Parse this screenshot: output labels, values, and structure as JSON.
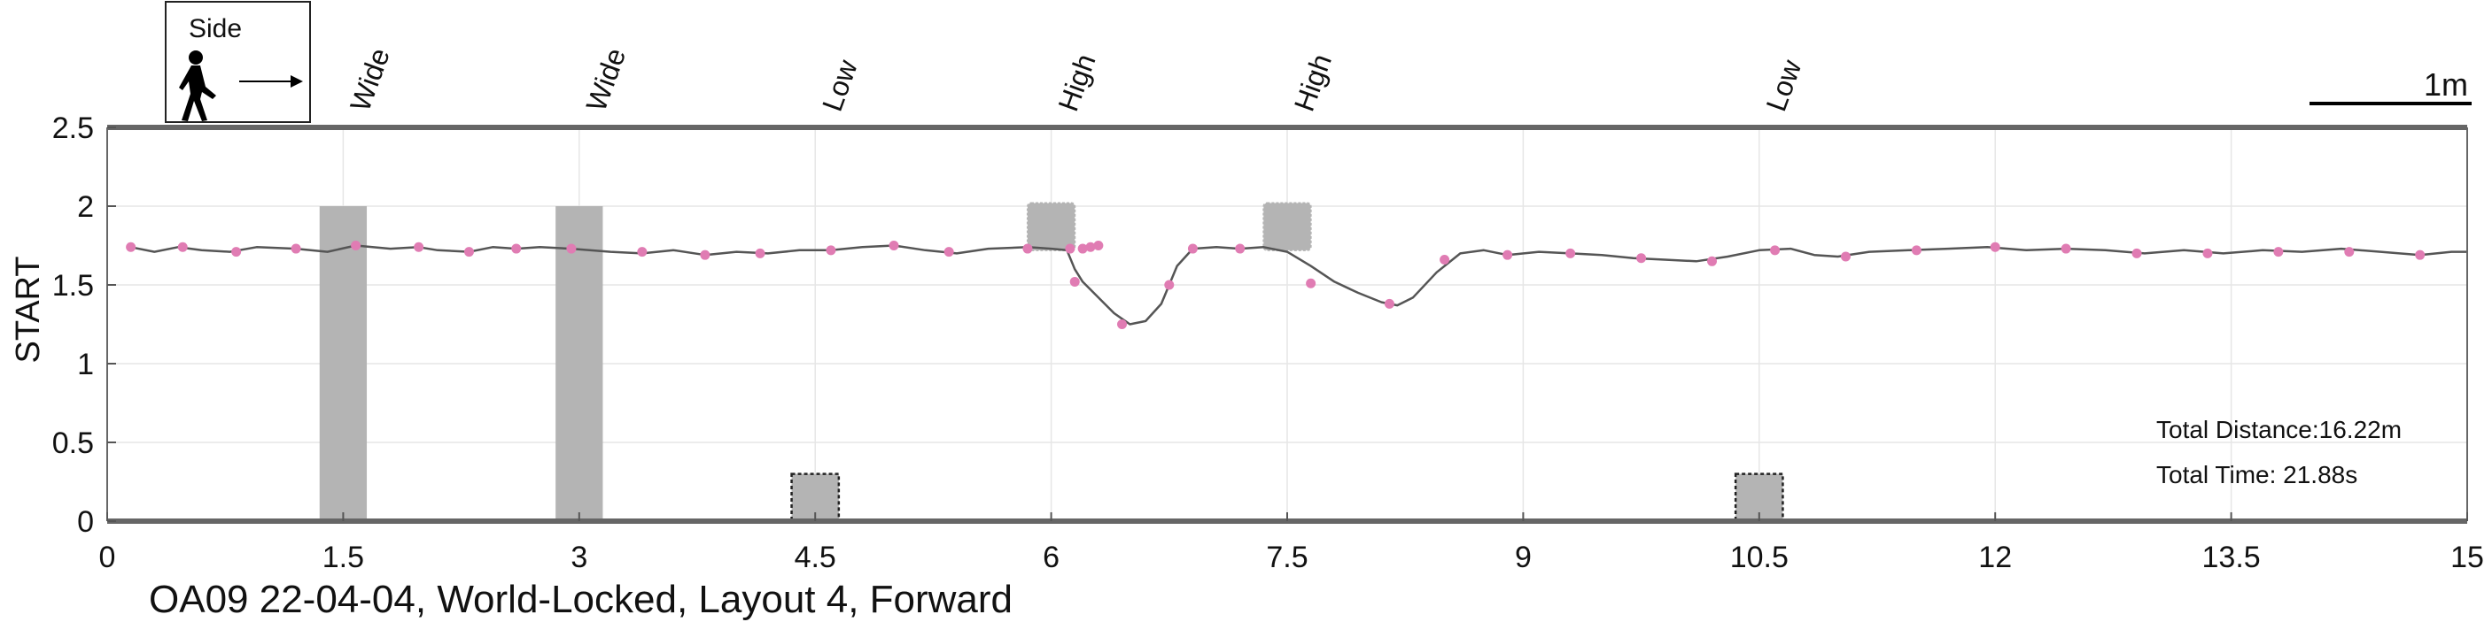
{
  "chart_data": {
    "type": "line",
    "title": "OA09 22-04-04, World-Locked, Layout 4, Forward",
    "xlabel": "",
    "ylabel": "START",
    "xlim": [
      0,
      15
    ],
    "ylim": [
      0,
      2.5
    ],
    "x_ticks": [
      "0",
      "1.5",
      "3",
      "4.5",
      "6",
      "7.5",
      "9",
      "10.5",
      "12",
      "13.5",
      "15"
    ],
    "y_ticks": [
      "0",
      "0.5",
      "1",
      "1.5",
      "2",
      "2.5"
    ],
    "x_tick_values": [
      0,
      1.5,
      3,
      4.5,
      6,
      7.5,
      9,
      10.5,
      12,
      13.5,
      15
    ],
    "y_tick_values": [
      0,
      0.5,
      1,
      1.5,
      2,
      2.5
    ],
    "grid": true,
    "legend": {
      "label": "Side",
      "position": "top-left",
      "icon": "walking-person-icon"
    },
    "scale_bar": {
      "label": "1m",
      "length": 1
    },
    "annotations": [
      "Total Distance:16.22m",
      "Total Time: 21.88s"
    ],
    "obstacles": [
      {
        "label": "Wide",
        "kind": "wide",
        "x_range": [
          1.35,
          1.65
        ],
        "y_range": [
          0,
          2.0
        ]
      },
      {
        "label": "Wide",
        "kind": "wide",
        "x_range": [
          2.85,
          3.15
        ],
        "y_range": [
          0,
          2.0
        ]
      },
      {
        "label": "Low",
        "kind": "low",
        "x_range": [
          4.35,
          4.65
        ],
        "y_range": [
          0,
          0.3
        ]
      },
      {
        "label": "High",
        "kind": "high",
        "x_range": [
          5.85,
          6.15
        ],
        "y_range": [
          1.72,
          2.02
        ]
      },
      {
        "label": "High",
        "kind": "high",
        "x_range": [
          7.35,
          7.65
        ],
        "y_range": [
          1.72,
          2.02
        ]
      },
      {
        "label": "Low",
        "kind": "low",
        "x_range": [
          10.35,
          10.65
        ],
        "y_range": [
          0,
          0.3
        ]
      }
    ],
    "series": [
      {
        "values": [
          [
            0.15,
            1.74
          ],
          [
            0.3,
            1.71
          ],
          [
            0.45,
            1.74
          ],
          [
            0.6,
            1.72
          ],
          [
            0.78,
            1.71
          ],
          [
            0.95,
            1.74
          ],
          [
            1.2,
            1.73
          ],
          [
            1.4,
            1.71
          ],
          [
            1.58,
            1.75
          ],
          [
            1.8,
            1.73
          ],
          [
            1.98,
            1.74
          ],
          [
            2.1,
            1.72
          ],
          [
            2.3,
            1.71
          ],
          [
            2.45,
            1.74
          ],
          [
            2.6,
            1.73
          ],
          [
            2.75,
            1.74
          ],
          [
            2.95,
            1.73
          ],
          [
            3.2,
            1.71
          ],
          [
            3.4,
            1.7
          ],
          [
            3.6,
            1.72
          ],
          [
            3.8,
            1.69
          ],
          [
            4.0,
            1.71
          ],
          [
            4.2,
            1.7
          ],
          [
            4.4,
            1.72
          ],
          [
            4.6,
            1.72
          ],
          [
            4.8,
            1.74
          ],
          [
            5.0,
            1.75
          ],
          [
            5.2,
            1.72
          ],
          [
            5.4,
            1.7
          ],
          [
            5.6,
            1.73
          ],
          [
            5.85,
            1.74
          ],
          [
            6.0,
            1.73
          ],
          [
            6.1,
            1.72
          ],
          [
            6.15,
            1.6
          ],
          [
            6.2,
            1.52
          ],
          [
            6.3,
            1.42
          ],
          [
            6.4,
            1.32
          ],
          [
            6.5,
            1.25
          ],
          [
            6.6,
            1.27
          ],
          [
            6.7,
            1.38
          ],
          [
            6.75,
            1.5
          ],
          [
            6.8,
            1.62
          ],
          [
            6.9,
            1.73
          ],
          [
            7.05,
            1.74
          ],
          [
            7.2,
            1.73
          ],
          [
            7.35,
            1.74
          ],
          [
            7.5,
            1.71
          ],
          [
            7.65,
            1.62
          ],
          [
            7.8,
            1.52
          ],
          [
            7.95,
            1.45
          ],
          [
            8.1,
            1.39
          ],
          [
            8.2,
            1.37
          ],
          [
            8.3,
            1.42
          ],
          [
            8.45,
            1.58
          ],
          [
            8.6,
            1.7
          ],
          [
            8.75,
            1.72
          ],
          [
            8.9,
            1.69
          ],
          [
            9.1,
            1.71
          ],
          [
            9.3,
            1.7
          ],
          [
            9.5,
            1.69
          ],
          [
            9.7,
            1.67
          ],
          [
            9.9,
            1.66
          ],
          [
            10.1,
            1.65
          ],
          [
            10.3,
            1.68
          ],
          [
            10.5,
            1.72
          ],
          [
            10.7,
            1.73
          ],
          [
            10.85,
            1.69
          ],
          [
            11.0,
            1.68
          ],
          [
            11.2,
            1.71
          ],
          [
            11.45,
            1.72
          ],
          [
            11.7,
            1.73
          ],
          [
            11.95,
            1.74
          ],
          [
            12.2,
            1.72
          ],
          [
            12.45,
            1.73
          ],
          [
            12.7,
            1.72
          ],
          [
            12.95,
            1.7
          ],
          [
            13.2,
            1.72
          ],
          [
            13.45,
            1.7
          ],
          [
            13.7,
            1.72
          ],
          [
            13.95,
            1.71
          ],
          [
            14.2,
            1.73
          ],
          [
            14.45,
            1.71
          ],
          [
            14.7,
            1.69
          ],
          [
            14.9,
            1.71
          ],
          [
            15.0,
            1.71
          ]
        ],
        "markers": [
          [
            0.15,
            1.74
          ],
          [
            0.48,
            1.74
          ],
          [
            0.82,
            1.71
          ],
          [
            1.2,
            1.73
          ],
          [
            1.58,
            1.75
          ],
          [
            1.98,
            1.74
          ],
          [
            2.3,
            1.71
          ],
          [
            2.6,
            1.73
          ],
          [
            2.95,
            1.73
          ],
          [
            3.4,
            1.71
          ],
          [
            3.8,
            1.69
          ],
          [
            4.15,
            1.7
          ],
          [
            4.6,
            1.72
          ],
          [
            5.0,
            1.75
          ],
          [
            5.35,
            1.71
          ],
          [
            5.85,
            1.73
          ],
          [
            6.12,
            1.73
          ],
          [
            6.2,
            1.73
          ],
          [
            6.25,
            1.74
          ],
          [
            6.3,
            1.75
          ],
          [
            6.15,
            1.52
          ],
          [
            6.45,
            1.25
          ],
          [
            6.75,
            1.5
          ],
          [
            6.9,
            1.73
          ],
          [
            7.2,
            1.73
          ],
          [
            7.65,
            1.51
          ],
          [
            8.15,
            1.38
          ],
          [
            8.5,
            1.66
          ],
          [
            8.9,
            1.69
          ],
          [
            9.3,
            1.7
          ],
          [
            9.75,
            1.67
          ],
          [
            10.2,
            1.65
          ],
          [
            10.6,
            1.72
          ],
          [
            11.05,
            1.68
          ],
          [
            11.5,
            1.72
          ],
          [
            12.0,
            1.74
          ],
          [
            12.45,
            1.73
          ],
          [
            12.9,
            1.7
          ],
          [
            13.35,
            1.7
          ],
          [
            13.8,
            1.71
          ],
          [
            14.25,
            1.71
          ],
          [
            14.7,
            1.69
          ]
        ],
        "color": "#e07cb3",
        "line_color": "#555555"
      }
    ]
  }
}
